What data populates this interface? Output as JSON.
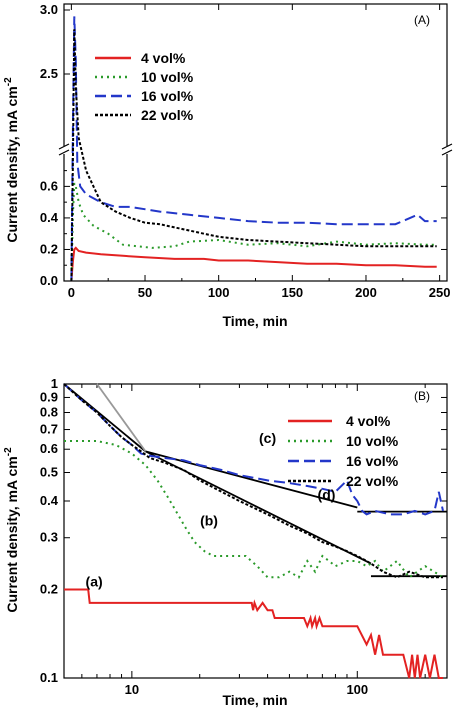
{
  "chart_data": [
    {
      "panel": "(A)",
      "type": "line",
      "xlabel": "Time, min",
      "ylabel": "Current density, mA cm",
      "ylabel_sup": "-2",
      "xlim": [
        -5,
        255
      ],
      "ylim_lower": [
        0,
        0.78
      ],
      "ylim_upper": [
        2.0,
        3.0
      ],
      "xticks": [
        "0",
        "50",
        "100",
        "150",
        "200",
        "250"
      ],
      "yticks_lower": [
        "0.0",
        "0.2",
        "0.4",
        "0.6"
      ],
      "yticks_upper": [
        "2.5",
        "3.0"
      ],
      "legend_position": "top-left",
      "colors": {
        "4": "#e32222",
        "10": "#2a9a2a",
        "16": "#2337c9",
        "22": "#000000"
      },
      "series": [
        {
          "name": "4  vol%",
          "style": "solid",
          "color": "#e32222",
          "x": [
            0,
            1,
            2,
            3,
            5,
            10,
            20,
            35,
            50,
            70,
            90,
            100,
            120,
            140,
            160,
            180,
            200,
            220,
            240,
            248
          ],
          "y": [
            0.0,
            0.12,
            0.2,
            0.21,
            0.19,
            0.18,
            0.17,
            0.16,
            0.15,
            0.14,
            0.14,
            0.13,
            0.13,
            0.12,
            0.11,
            0.11,
            0.1,
            0.1,
            0.09,
            0.09
          ]
        },
        {
          "name": "10 vol%",
          "style": "dotted",
          "color": "#2a9a2a",
          "x": [
            0,
            1,
            2,
            3,
            5,
            8,
            15,
            25,
            35,
            45,
            55,
            70,
            80,
            100,
            120,
            140,
            160,
            180,
            200,
            220,
            240,
            248
          ],
          "y": [
            0.0,
            0.4,
            0.62,
            0.6,
            0.5,
            0.42,
            0.35,
            0.3,
            0.23,
            0.22,
            0.21,
            0.22,
            0.25,
            0.26,
            0.23,
            0.24,
            0.22,
            0.25,
            0.23,
            0.24,
            0.23,
            0.23
          ]
        },
        {
          "name": "16 vol%",
          "style": "dashed",
          "color": "#2337c9",
          "x": [
            0,
            1,
            2,
            3,
            4,
            6,
            10,
            20,
            30,
            40,
            60,
            80,
            100,
            120,
            140,
            160,
            180,
            200,
            220,
            235,
            240,
            248
          ],
          "y": [
            0.0,
            0.9,
            2.95,
            2.6,
            0.75,
            0.6,
            0.55,
            0.5,
            0.47,
            0.47,
            0.44,
            0.42,
            0.4,
            0.38,
            0.37,
            0.37,
            0.36,
            0.36,
            0.36,
            0.42,
            0.38,
            0.38
          ]
        },
        {
          "name": "22 vol%",
          "style": "dotted-short",
          "color": "#000000",
          "x": [
            0,
            1,
            2,
            3,
            5,
            10,
            20,
            30,
            40,
            50,
            60,
            70,
            80,
            90,
            100,
            110,
            120,
            140,
            160,
            180,
            200,
            220,
            240,
            248
          ],
          "y": [
            0.0,
            0.7,
            2.85,
            2.4,
            0.8,
            0.7,
            0.5,
            0.44,
            0.4,
            0.37,
            0.36,
            0.34,
            0.32,
            0.3,
            0.28,
            0.27,
            0.26,
            0.25,
            0.24,
            0.23,
            0.22,
            0.22,
            0.22,
            0.22
          ]
        }
      ]
    },
    {
      "panel": "(B)",
      "type": "line",
      "scale": "log-log",
      "xlabel": "Time, min",
      "ylabel": "Current density, mA cm",
      "ylabel_sup": "-2",
      "xlim": [
        5,
        250
      ],
      "ylim": [
        0.1,
        1
      ],
      "xticks": [
        {
          "v": 10,
          "label": "10"
        },
        {
          "v": 100,
          "label": "100"
        }
      ],
      "yticks": [
        {
          "v": 0.1,
          "label": "0.1"
        },
        {
          "v": 0.2,
          "label": "0.2"
        },
        {
          "v": 0.3,
          "label": "0.3"
        },
        {
          "v": 0.4,
          "label": "0.4"
        },
        {
          "v": 0.5,
          "label": "0.5"
        },
        {
          "v": 0.6,
          "label": "0.6"
        },
        {
          "v": 0.7,
          "label": "0.7"
        },
        {
          "v": 0.8,
          "label": "0.8"
        },
        {
          "v": 0.9,
          "label": "0.9"
        },
        {
          "v": 1,
          "label": "1"
        }
      ],
      "legend_position": "top-right",
      "annotations": [
        {
          "text": "(a)",
          "x": 6.8,
          "y": 0.205
        },
        {
          "text": "(b)",
          "x": 22,
          "y": 0.33
        },
        {
          "text": "(c)",
          "x": 40,
          "y": 0.63
        },
        {
          "text": "(d)",
          "x": 73,
          "y": 0.405
        }
      ],
      "series": [
        {
          "name": "4  vol%",
          "style": "solid",
          "color": "#e32222",
          "x": [
            5,
            6.4,
            6.5,
            34,
            34.5,
            35,
            36,
            38,
            40,
            42,
            43,
            58,
            60,
            62,
            63,
            65,
            66,
            68,
            70,
            100,
            110,
            115,
            120,
            125,
            130,
            160,
            170,
            175,
            180,
            185,
            190,
            200,
            210,
            220,
            230,
            240
          ],
          "y": [
            0.2,
            0.2,
            0.18,
            0.18,
            0.17,
            0.18,
            0.17,
            0.18,
            0.17,
            0.17,
            0.16,
            0.16,
            0.15,
            0.16,
            0.15,
            0.16,
            0.15,
            0.16,
            0.15,
            0.15,
            0.13,
            0.14,
            0.12,
            0.14,
            0.12,
            0.12,
            0.1,
            0.12,
            0.1,
            0.12,
            0.1,
            0.12,
            0.1,
            0.12,
            0.1,
            0.1
          ]
        },
        {
          "name": "10 vol%",
          "style": "dotted",
          "color": "#2a9a2a",
          "x": [
            5,
            7,
            8.5,
            10,
            11.5,
            13,
            14.5,
            16,
            17.5,
            19,
            21,
            23,
            25,
            28,
            32,
            36,
            40,
            45,
            50,
            55,
            60,
            65,
            70,
            75,
            80,
            90,
            100,
            110,
            120,
            130,
            150,
            170,
            200,
            240
          ],
          "y": [
            0.64,
            0.64,
            0.62,
            0.58,
            0.53,
            0.47,
            0.41,
            0.36,
            0.32,
            0.29,
            0.27,
            0.26,
            0.26,
            0.26,
            0.26,
            0.24,
            0.22,
            0.22,
            0.23,
            0.22,
            0.25,
            0.23,
            0.26,
            0.25,
            0.24,
            0.25,
            0.25,
            0.24,
            0.25,
            0.23,
            0.25,
            0.22,
            0.24,
            0.22
          ]
        },
        {
          "name": "16 vol%",
          "style": "dashed",
          "color": "#2337c9",
          "x": [
            5,
            6,
            7,
            8,
            9,
            10,
            11,
            12,
            14,
            17,
            20,
            25,
            30,
            40,
            50,
            60,
            70,
            80,
            90,
            95,
            100,
            105,
            110,
            120,
            140,
            160,
            180,
            200,
            220,
            230,
            240
          ],
          "y": [
            1.0,
            0.88,
            0.8,
            0.72,
            0.66,
            0.62,
            0.58,
            0.57,
            0.56,
            0.55,
            0.53,
            0.51,
            0.49,
            0.47,
            0.46,
            0.45,
            0.44,
            0.43,
            0.47,
            0.42,
            0.4,
            0.37,
            0.36,
            0.37,
            0.36,
            0.36,
            0.37,
            0.36,
            0.37,
            0.43,
            0.37
          ]
        },
        {
          "name": "22 vol%",
          "style": "dotted-short",
          "color": "#000000",
          "x": [
            5,
            6,
            7,
            8,
            9,
            10,
            11,
            12,
            14,
            17,
            20,
            25,
            30,
            40,
            50,
            60,
            70,
            80,
            90,
            100,
            110,
            120,
            130,
            150,
            170,
            200,
            240
          ],
          "y": [
            1.0,
            0.88,
            0.8,
            0.72,
            0.66,
            0.62,
            0.59,
            0.56,
            0.54,
            0.51,
            0.47,
            0.43,
            0.4,
            0.36,
            0.33,
            0.31,
            0.29,
            0.28,
            0.27,
            0.26,
            0.25,
            0.24,
            0.23,
            0.22,
            0.23,
            0.22,
            0.22
          ]
        }
      ],
      "fit_lines": [
        {
          "color": "#000000",
          "x": [
            5,
            11.5
          ],
          "y": [
            1.0,
            0.59
          ]
        },
        {
          "color": "#000000",
          "x": [
            11.5,
            100
          ],
          "y": [
            0.59,
            0.38
          ]
        },
        {
          "color": "#000000",
          "x": [
            11.5,
            115
          ],
          "y": [
            0.59,
            0.245
          ]
        },
        {
          "color": "#000000",
          "x": [
            115,
            250
          ],
          "y": [
            0.222,
            0.222
          ]
        },
        {
          "color": "#000000",
          "x": [
            100,
            250
          ],
          "y": [
            0.368,
            0.368
          ]
        },
        {
          "color": "#999999",
          "x": [
            7,
            11.5
          ],
          "y": [
            1.0,
            0.59
          ]
        }
      ]
    }
  ]
}
